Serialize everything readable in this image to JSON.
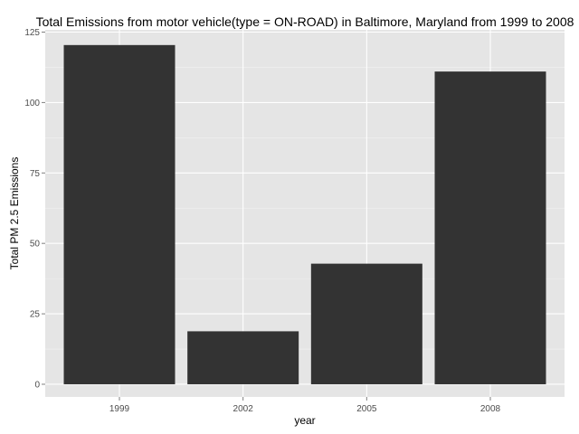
{
  "chart_data": {
    "type": "bar",
    "title": "Total Emissions from motor vehicle(type = ON-ROAD) in Baltimore, Maryland from 1999 to 2008",
    "xlabel": "year",
    "ylabel": "Total PM 2.5 Emissions",
    "categories": [
      "1999",
      "2002",
      "2005",
      "2008"
    ],
    "values": [
      120.4,
      18.8,
      42.8,
      111.0
    ],
    "ylim": [
      -4.5,
      125.8
    ],
    "yticks": [
      0,
      25,
      50,
      75,
      100,
      125
    ],
    "ytick_labels": [
      "0",
      "25",
      "50",
      "75",
      "100",
      "125"
    ],
    "grid": true,
    "legend": "none",
    "colors": {
      "bar": "#333333",
      "panel_background": "#e5e5e5",
      "grid_major": "#ffffff",
      "grid_minor": "#f2f2f2"
    }
  }
}
